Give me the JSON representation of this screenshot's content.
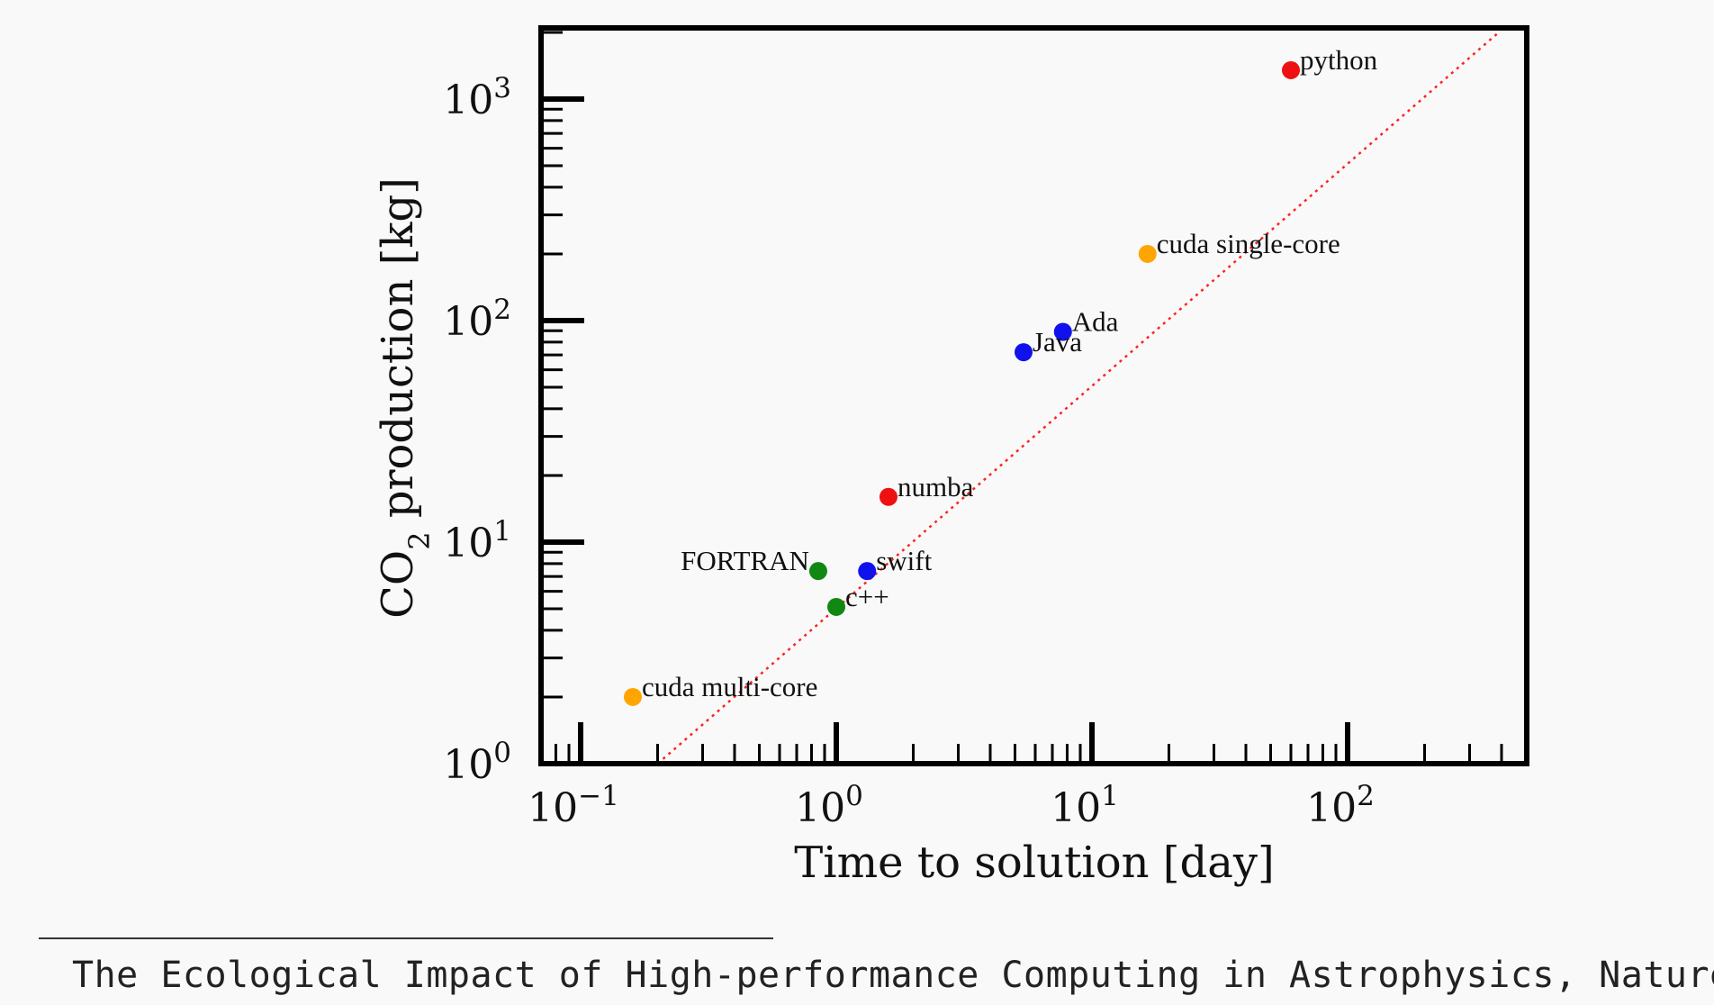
{
  "chart_data": {
    "type": "scatter",
    "xlabel": "Time to solution [day]",
    "ylabel": "CO2 production [kg]",
    "x_scale": "log",
    "y_scale": "log",
    "xlim": [
      0.07,
      500
    ],
    "ylim": [
      1,
      2000
    ],
    "x_ticks": [
      {
        "value": 0.1,
        "base": "10",
        "exp": "−1"
      },
      {
        "value": 1,
        "base": "10",
        "exp": "0"
      },
      {
        "value": 10,
        "base": "10",
        "exp": "1"
      },
      {
        "value": 100,
        "base": "10",
        "exp": "2"
      }
    ],
    "y_ticks": [
      {
        "value": 1,
        "base": "10",
        "exp": "0"
      },
      {
        "value": 10,
        "base": "10",
        "exp": "1"
      },
      {
        "value": 100,
        "base": "10",
        "exp": "2"
      },
      {
        "value": 1000,
        "base": "10",
        "exp": "3"
      }
    ],
    "grid": false,
    "reference_line": {
      "style": "dotted",
      "color": "#ff2222",
      "from": [
        0.2,
        1
      ],
      "to": [
        390,
        2000
      ]
    },
    "points": [
      {
        "label": "python",
        "x": 60,
        "y": 1350,
        "color": "#ee1111",
        "label_side": "right"
      },
      {
        "label": "cuda single-core",
        "x": 16.5,
        "y": 200,
        "color": "#ffa500",
        "label_side": "right"
      },
      {
        "label": "Ada",
        "x": 7.7,
        "y": 89,
        "color": "#1111ee",
        "label_side": "right"
      },
      {
        "label": "Java",
        "x": 5.4,
        "y": 72,
        "color": "#1111ee",
        "label_side": "right"
      },
      {
        "label": "numba",
        "x": 1.6,
        "y": 16,
        "color": "#ee1111",
        "label_side": "right"
      },
      {
        "label": "FORTRAN",
        "x": 0.85,
        "y": 7.4,
        "color": "#118811",
        "label_side": "left"
      },
      {
        "label": "swift",
        "x": 1.32,
        "y": 7.4,
        "color": "#1111ee",
        "label_side": "right"
      },
      {
        "label": "c++",
        "x": 1.0,
        "y": 5.1,
        "color": "#118811",
        "label_side": "right"
      },
      {
        "label": "cuda multi-core",
        "x": 0.16,
        "y": 2.0,
        "color": "#ffa500",
        "label_side": "right"
      }
    ]
  },
  "caption": "The Ecological Impact of High-performance Computing in Astrophysics, Nature"
}
